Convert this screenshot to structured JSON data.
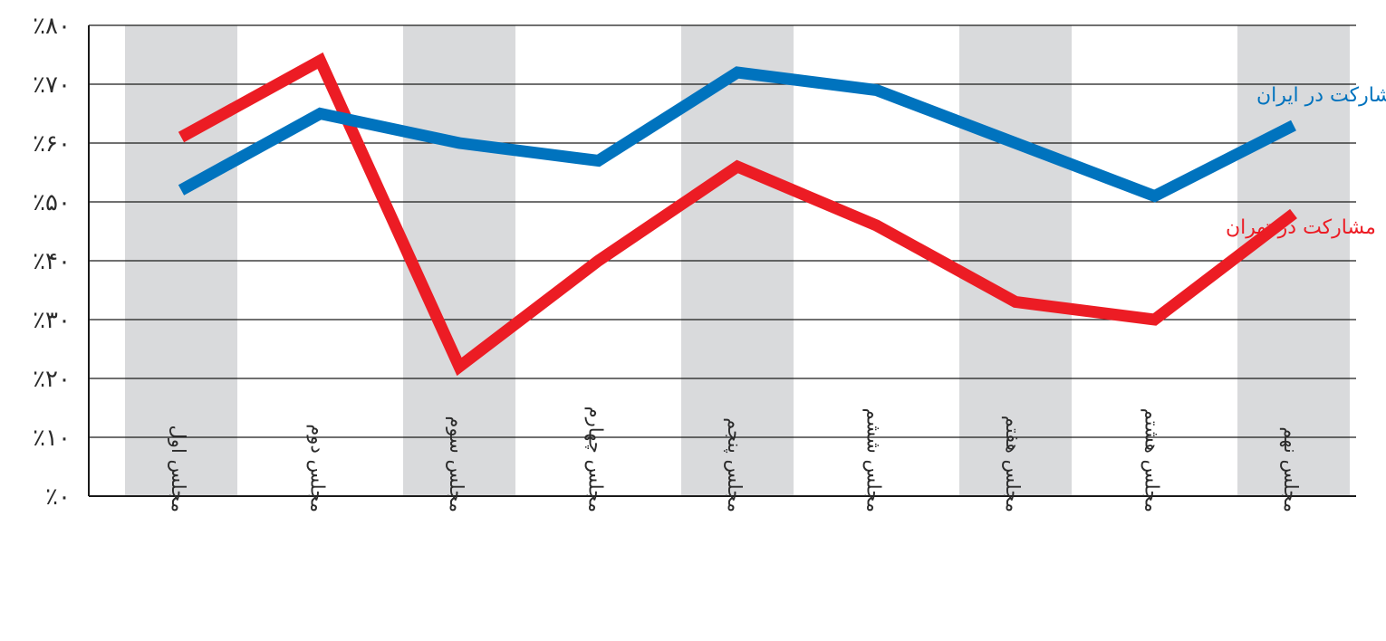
{
  "chart_data": {
    "type": "line",
    "categories": [
      "مجلس اول",
      "مجلس دوم",
      "مجلس سوم",
      "مجلس چهارم",
      "مجلس پنجم",
      "مجلس ششم",
      "مجلس هفتم",
      "مجلس هشتم",
      "مجلس نهم"
    ],
    "y_ticks": [
      "٪۰",
      "٪۱۰",
      "٪۲۰",
      "٪۳۰",
      "٪۴۰",
      "٪۵۰",
      "٪۶۰",
      "٪۷۰",
      "٪۸۰"
    ],
    "ylim": [
      0,
      80
    ],
    "grid": true,
    "series": [
      {
        "name": "مشارکت در ایران",
        "color": "#0073BE",
        "values": [
          52,
          65,
          60,
          57,
          72,
          69,
          60,
          51,
          63
        ]
      },
      {
        "name": "مشارکت در تهران",
        "color": "#EC1C24",
        "values": [
          61,
          74,
          22,
          40,
          56,
          46,
          33,
          30,
          48
        ]
      }
    ],
    "band_color": "#D9DADC"
  }
}
